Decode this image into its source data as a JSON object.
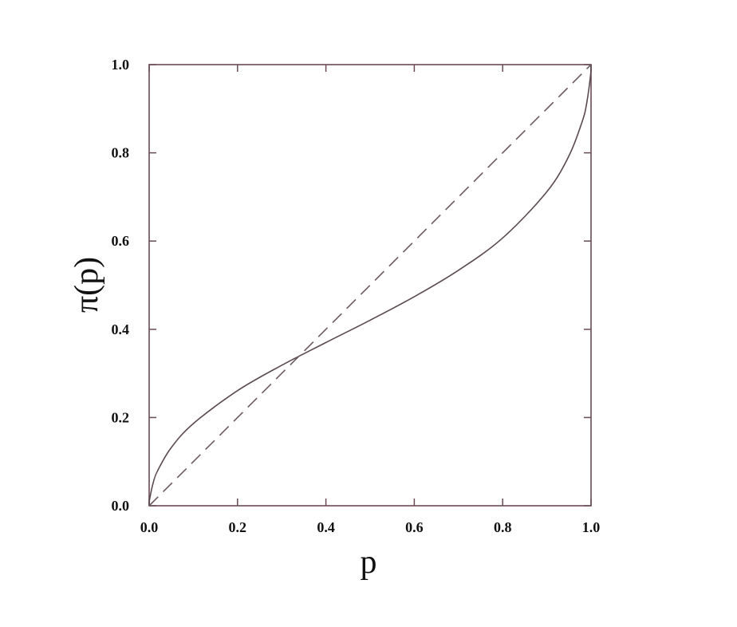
{
  "chart_data": {
    "type": "line",
    "xlabel": "p",
    "ylabel": "π(p)",
    "xlim": [
      0,
      1
    ],
    "ylim": [
      0,
      1
    ],
    "grid": false,
    "xticks": [
      "0.0",
      "0.2",
      "0.4",
      "0.6",
      "0.8",
      "1.0"
    ],
    "yticks": [
      "0.0",
      "0.2",
      "0.4",
      "0.6",
      "0.8",
      "1.0"
    ],
    "series": [
      {
        "style": "solid",
        "color": "#5a4a4e",
        "x": [
          0,
          0.001,
          0.01,
          0.02,
          0.05,
          0.1,
          0.2,
          0.3,
          0.4,
          0.5,
          0.6,
          0.7,
          0.8,
          0.9,
          0.95,
          0.98,
          0.99,
          0.999,
          1
        ],
        "y": [
          0,
          0.0145,
          0.0553,
          0.0811,
          0.1318,
          0.1863,
          0.261,
          0.3184,
          0.37,
          0.4206,
          0.4739,
          0.5338,
          0.607,
          0.7118,
          0.7931,
          0.871,
          0.9115,
          0.9766,
          1
        ]
      },
      {
        "style": "dashed",
        "color": "#6a5a62",
        "x": [
          0,
          1
        ],
        "y": [
          0,
          1
        ]
      }
    ],
    "axis_color": "#6b4a55"
  }
}
